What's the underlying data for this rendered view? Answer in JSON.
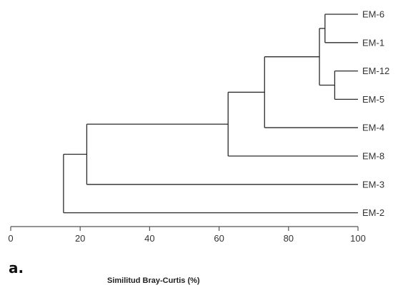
{
  "panel_label": "a.",
  "chart_data": {
    "type": "dendrogram",
    "title": "",
    "xlabel": "Similitud Bray-Curtis (%)",
    "ylabel": "",
    "xlim": [
      0,
      100
    ],
    "x_ticks": [
      0,
      20,
      40,
      60,
      80,
      100
    ],
    "x_tick_labels": [
      "0",
      "20",
      "40",
      "60",
      "80",
      "100"
    ],
    "grid": false,
    "leaves": [
      "EM-6",
      "EM-1",
      "EM-12",
      "EM-5",
      "EM-4",
      "EM-8",
      "EM-3",
      "EM-2"
    ],
    "merges": [
      {
        "id": "c1",
        "children": [
          "EM-6",
          "EM-1"
        ],
        "similarity": 90.5
      },
      {
        "id": "c2",
        "children": [
          "EM-12",
          "EM-5"
        ],
        "similarity": 93.3
      },
      {
        "id": "c3",
        "children": [
          "c1",
          "c2"
        ],
        "similarity": 88.9
      },
      {
        "id": "c4",
        "children": [
          "c3",
          "EM-4"
        ],
        "similarity": 73.1
      },
      {
        "id": "c5",
        "children": [
          "c4",
          "EM-8"
        ],
        "similarity": 62.6
      },
      {
        "id": "c6",
        "children": [
          "c5",
          "EM-3"
        ],
        "similarity": 21.9
      },
      {
        "id": "c7",
        "children": [
          "c6",
          "EM-2"
        ],
        "similarity": 15.2
      }
    ]
  }
}
